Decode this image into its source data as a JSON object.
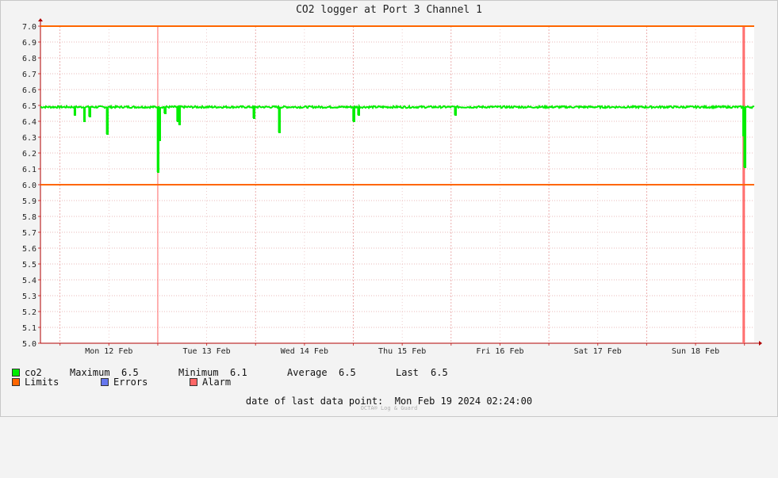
{
  "chart_data": {
    "type": "line",
    "title": "CO2 logger at Port 3 Channel 1",
    "ylim": [
      5.0,
      7.0
    ],
    "y_ticks": [
      "5.0",
      "5.1",
      "5.2",
      "5.3",
      "5.4",
      "5.5",
      "5.6",
      "5.7",
      "5.8",
      "5.9",
      "6.0",
      "6.1",
      "6.2",
      "6.3",
      "6.4",
      "6.5",
      "6.6",
      "6.7",
      "6.8",
      "6.9",
      "7.0"
    ],
    "x_ticks": [
      "Mon 12 Feb",
      "Tue 13 Feb",
      "Wed 14 Feb",
      "Thu 15 Feb",
      "Fri 16 Feb",
      "Sat 17 Feb",
      "Sun 18 Feb"
    ],
    "xlim_days": [
      11.8,
      19.1
    ],
    "grid": true,
    "limits": {
      "upper": 7.0,
      "lower": 6.0,
      "color": "#ff6600"
    },
    "series": [
      {
        "name": "co2",
        "color": "#00ee00",
        "baseline": 6.49,
        "x": [
          12.15,
          12.25,
          12.3,
          12.48,
          13.0,
          13.02,
          13.07,
          13.2,
          13.22,
          13.98,
          14.24,
          15.0,
          15.05,
          16.04,
          18.99,
          19.0
        ],
        "dips": [
          6.44,
          6.4,
          6.43,
          6.32,
          6.08,
          6.28,
          6.45,
          6.4,
          6.38,
          6.42,
          6.33,
          6.4,
          6.44,
          6.44,
          6.31,
          6.11
        ]
      }
    ],
    "alarms": [
      13.0,
      19.0
    ],
    "alarm_band": [
      18.98,
      19.0
    ],
    "alarm_color": "#ff6666"
  },
  "legend": {
    "co2_label": "co2",
    "co2_color": "#00ee00",
    "maximum_label": "Maximum",
    "maximum_value": "6.5",
    "minimum_label": "Minimum",
    "minimum_value": "6.1",
    "average_label": "Average",
    "average_value": "6.5",
    "last_label": "Last",
    "last_value": "6.5",
    "limits_label": "Limits",
    "limits_color": "#ff6600",
    "errors_label": "Errors",
    "errors_color": "#6677ee",
    "alarm_label": "Alarm",
    "alarm_color": "#ff6666"
  },
  "last_data_point": {
    "label": "date of last data point:",
    "value": "Mon Feb 19 2024 02:24:00"
  },
  "footer": "OCTA® Log & Guard"
}
